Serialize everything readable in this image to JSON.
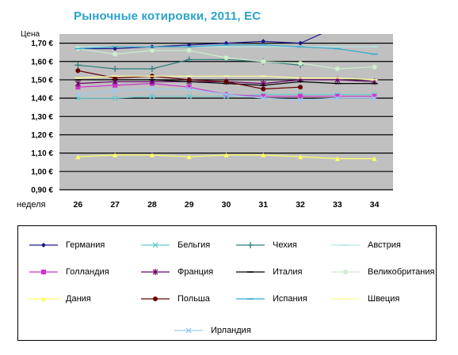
{
  "chart_data": {
    "type": "line",
    "title": "Рыночные котировки, 2011, ЕС",
    "ylabel": "Цена",
    "xlabel": "неделя",
    "x": [
      "26",
      "27",
      "28",
      "29",
      "30",
      "31",
      "32",
      "33",
      "34"
    ],
    "ylim": [
      0.9,
      1.75
    ],
    "yticks": [
      "0,90 €",
      "1,00 €",
      "1,10 €",
      "1,20 €",
      "1,30 €",
      "1,40 €",
      "1,50 €",
      "1,60 €",
      "1,70 €"
    ],
    "ytick_values": [
      0.9,
      1.0,
      1.1,
      1.2,
      1.3,
      1.4,
      1.5,
      1.6,
      1.7
    ],
    "grid": true,
    "legend_position": "bottom",
    "series": [
      {
        "name": "Германия",
        "color": "#1a1a8c",
        "marker": "diamond",
        "values": [
          1.67,
          1.67,
          1.68,
          1.69,
          1.7,
          1.71,
          1.7,
          1.79,
          null
        ]
      },
      {
        "name": "Бельгия",
        "color": "#66cccc",
        "marker": "x",
        "values": [
          1.4,
          1.4,
          1.41,
          1.41,
          1.41,
          1.42,
          1.42,
          1.42,
          1.42
        ]
      },
      {
        "name": "Чехия",
        "color": "#2e7d7d",
        "marker": "plus",
        "values": [
          1.58,
          1.56,
          1.56,
          1.61,
          1.61,
          1.6,
          1.58,
          null,
          null
        ]
      },
      {
        "name": "Австрия",
        "color": "#b3e6e6",
        "marker": "dash",
        "values": [
          1.68,
          1.68,
          1.68,
          1.68,
          1.68,
          1.68,
          1.68,
          1.68,
          1.68
        ]
      },
      {
        "name": "Голландия",
        "color": "#cc33cc",
        "marker": "square",
        "values": [
          1.46,
          1.47,
          1.48,
          1.46,
          1.42,
          1.41,
          1.41,
          1.41,
          1.41
        ]
      },
      {
        "name": "Франция",
        "color": "#660066",
        "marker": "star",
        "values": [
          1.48,
          1.49,
          1.49,
          1.49,
          1.49,
          1.48,
          1.5,
          1.5,
          1.49
        ]
      },
      {
        "name": "Италия",
        "color": "#000000",
        "marker": "dash",
        "values": [
          1.5,
          1.5,
          1.5,
          1.49,
          1.48,
          1.47,
          1.49,
          1.48,
          1.48
        ]
      },
      {
        "name": "Великобритания",
        "color": "#cceecc",
        "marker": "circle",
        "values": [
          1.67,
          1.64,
          1.66,
          1.66,
          1.62,
          1.6,
          1.59,
          1.56,
          1.57
        ]
      },
      {
        "name": "Дания",
        "color": "#ffff66",
        "marker": "triangle",
        "values": [
          1.08,
          1.09,
          1.09,
          1.08,
          1.09,
          1.09,
          1.08,
          1.07,
          1.07
        ]
      },
      {
        "name": "Польша",
        "color": "#660000",
        "marker": "circle",
        "values": [
          1.55,
          1.51,
          1.52,
          1.5,
          1.49,
          1.45,
          1.46,
          null,
          null
        ]
      },
      {
        "name": "Испания",
        "color": "#33aacc",
        "marker": "dash",
        "values": [
          1.67,
          1.68,
          1.68,
          1.68,
          1.69,
          1.69,
          1.68,
          1.67,
          1.64
        ]
      },
      {
        "name": "Швеция",
        "color": "#ffff99",
        "marker": "dash",
        "values": [
          1.51,
          1.52,
          1.52,
          1.52,
          1.52,
          1.52,
          1.51,
          1.51,
          1.5
        ]
      },
      {
        "name": "Ирландия",
        "color": "#99ccee",
        "marker": "x",
        "values": [
          1.42,
          1.44,
          1.45,
          1.45,
          1.42,
          1.4,
          1.39,
          1.4,
          1.4
        ]
      }
    ]
  }
}
